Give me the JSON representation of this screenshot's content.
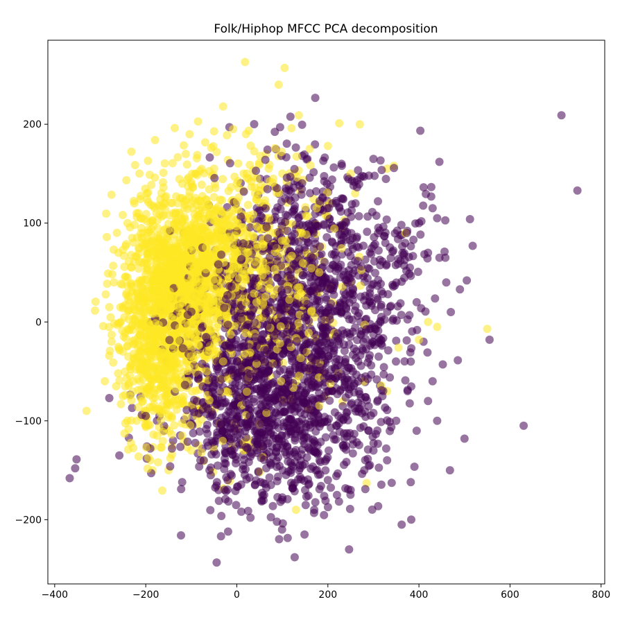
{
  "chart_data": {
    "type": "scatter",
    "title": "Folk/Hiphop MFCC PCA decomposition",
    "xlabel": "",
    "ylabel": "",
    "xlim": [
      -415,
      808
    ],
    "ylim": [
      -265,
      285
    ],
    "x_ticks": [
      -400,
      -200,
      0,
      200,
      400,
      600,
      800
    ],
    "y_ticks": [
      -200,
      -100,
      0,
      100,
      200
    ],
    "x_tick_labels": [
      "−400",
      "−200",
      "0",
      "200",
      "400",
      "600",
      "800"
    ],
    "y_tick_labels": [
      "−200",
      "−100",
      "0",
      "100",
      "200"
    ],
    "grid": false,
    "legend": "none",
    "marker_alpha": 0.55,
    "colors": {
      "class_a": "#fde725",
      "class_b": "#440154"
    },
    "series": [
      {
        "color": "#fde725",
        "points": [
          [
            18,
            263
          ],
          [
            105,
            257
          ],
          [
            92,
            240
          ],
          [
            -30,
            218
          ],
          [
            136,
            209
          ],
          [
            225,
            201
          ],
          [
            270,
            200
          ],
          [
            -8,
            195
          ],
          [
            20,
            190
          ],
          [
            120,
            196
          ],
          [
            -195,
            163
          ],
          [
            -180,
            146
          ],
          [
            -210,
            105
          ],
          [
            -240,
            100
          ],
          [
            -230,
            85
          ],
          [
            -260,
            70
          ],
          [
            -270,
            40
          ],
          [
            -280,
            15
          ],
          [
            -255,
            0
          ],
          [
            -275,
            -20
          ],
          [
            -290,
            -60
          ],
          [
            -265,
            -65
          ],
          [
            -250,
            -75
          ],
          [
            -330,
            -90
          ],
          [
            -190,
            -140
          ],
          [
            -185,
            -150
          ],
          [
            -150,
            -150
          ],
          [
            -10,
            -125
          ],
          [
            15,
            -130
          ],
          [
            130,
            -190
          ],
          [
            285,
            -163
          ],
          [
            330,
            155
          ],
          [
            345,
            158
          ],
          [
            370,
            90
          ],
          [
            250,
            150
          ],
          [
            200,
            178
          ],
          [
            160,
            175
          ],
          [
            420,
            0
          ],
          [
            440,
            -5
          ],
          [
            400,
            -18
          ],
          [
            550,
            -7
          ],
          [
            355,
            -26
          ],
          [
            330,
            -70
          ],
          [
            180,
            120
          ],
          [
            230,
            95
          ],
          [
            260,
            130
          ],
          [
            100,
            150
          ],
          [
            60,
            120
          ],
          [
            -50,
            155
          ],
          [
            -90,
            150
          ],
          [
            -120,
            140
          ],
          [
            -160,
            120
          ],
          [
            -140,
            110
          ],
          [
            -220,
            110
          ],
          [
            -240,
            45
          ],
          [
            -235,
            20
          ],
          [
            -250,
            -30
          ],
          [
            -220,
            -100
          ],
          [
            -200,
            -105
          ],
          [
            -175,
            -115
          ],
          [
            -120,
            -115
          ],
          [
            -100,
            -130
          ],
          [
            -60,
            -90
          ],
          [
            -30,
            -40
          ],
          [
            -10,
            10
          ],
          [
            20,
            20
          ],
          [
            60,
            60
          ],
          [
            80,
            90
          ],
          [
            40,
            130
          ],
          [
            0,
            140
          ],
          [
            140,
            60
          ],
          [
            180,
            30
          ],
          [
            210,
            20
          ],
          [
            250,
            40
          ],
          [
            160,
            -40
          ],
          [
            130,
            -60
          ],
          [
            -60,
            60
          ],
          [
            -80,
            30
          ],
          [
            -100,
            0
          ],
          [
            -130,
            -30
          ],
          [
            -150,
            -60
          ]
        ],
        "clusters": [
          {
            "cx": -140,
            "cy": 30,
            "sx": 55,
            "sy": 50,
            "n": 1050
          },
          {
            "cx": -70,
            "cy": 65,
            "sx": 60,
            "sy": 45,
            "n": 420
          },
          {
            "cx": -175,
            "cy": -40,
            "sx": 38,
            "sy": 45,
            "n": 330
          },
          {
            "cx": 40,
            "cy": 100,
            "sx": 55,
            "sy": 40,
            "n": 160
          },
          {
            "cx": 120,
            "cy": 25,
            "sx": 75,
            "sy": 55,
            "n": 170
          },
          {
            "cx": -20,
            "cy": -30,
            "sx": 60,
            "sy": 55,
            "n": 140
          }
        ]
      },
      {
        "color": "#440154",
        "points": [
          [
            713,
            209
          ],
          [
            748,
            133
          ],
          [
            630,
            -105
          ],
          [
            555,
            -18
          ],
          [
            500,
            -118
          ],
          [
            518,
            77
          ],
          [
            512,
            104
          ],
          [
            490,
            33
          ],
          [
            505,
            42
          ],
          [
            468,
            -150
          ],
          [
            458,
            65
          ],
          [
            445,
            65
          ],
          [
            440,
            105
          ],
          [
            430,
            115
          ],
          [
            382,
            -162
          ],
          [
            383,
            -200
          ],
          [
            362,
            -205
          ],
          [
            127,
            -238
          ],
          [
            -352,
            -139
          ],
          [
            -355,
            -148
          ],
          [
            -367,
            -158
          ],
          [
            -258,
            -135
          ],
          [
            -280,
            -77
          ],
          [
            -230,
            -87
          ],
          [
            -190,
            -128
          ],
          [
            -188,
            -153
          ],
          [
            -120,
            -162
          ],
          [
            88,
            -202
          ],
          [
            30,
            -198
          ],
          [
            10,
            -192
          ],
          [
            95,
            197
          ],
          [
            155,
            165
          ],
          [
            190,
            163
          ],
          [
            300,
            165
          ],
          [
            230,
            160
          ],
          [
            290,
            148
          ],
          [
            210,
            120
          ],
          [
            310,
            122
          ],
          [
            400,
            100
          ],
          [
            420,
            70
          ],
          [
            380,
            55
          ],
          [
            460,
            40
          ],
          [
            470,
            10
          ],
          [
            395,
            20
          ],
          [
            410,
            -20
          ],
          [
            430,
            -60
          ],
          [
            420,
            -80
          ],
          [
            440,
            -100
          ],
          [
            395,
            -110
          ],
          [
            375,
            -70
          ],
          [
            350,
            -100
          ],
          [
            330,
            -140
          ],
          [
            300,
            -130
          ],
          [
            280,
            -150
          ],
          [
            250,
            -170
          ],
          [
            220,
            -175
          ],
          [
            200,
            -160
          ],
          [
            170,
            -190
          ],
          [
            150,
            -170
          ],
          [
            100,
            -180
          ],
          [
            60,
            -175
          ],
          [
            40,
            -165
          ],
          [
            -20,
            -160
          ],
          [
            -40,
            -170
          ],
          [
            -60,
            -150
          ],
          [
            -80,
            -140
          ],
          [
            -140,
            -120
          ],
          [
            -160,
            -110
          ],
          [
            -170,
            -95
          ],
          [
            -200,
            -95
          ]
        ],
        "clusters": [
          {
            "cx": 85,
            "cy": -25,
            "sx": 95,
            "sy": 70,
            "n": 950
          },
          {
            "cx": 210,
            "cy": 10,
            "sx": 90,
            "sy": 75,
            "n": 450
          },
          {
            "cx": 20,
            "cy": -90,
            "sx": 70,
            "sy": 45,
            "n": 300
          },
          {
            "cx": 150,
            "cy": -110,
            "sx": 85,
            "sy": 45,
            "n": 200
          },
          {
            "cx": 290,
            "cy": 40,
            "sx": 70,
            "sy": 55,
            "n": 150
          },
          {
            "cx": -60,
            "cy": -20,
            "sx": 50,
            "sy": 55,
            "n": 90
          },
          {
            "cx": 120,
            "cy": 100,
            "sx": 60,
            "sy": 35,
            "n": 100
          }
        ]
      }
    ],
    "cloud_seed": 20240611
  }
}
